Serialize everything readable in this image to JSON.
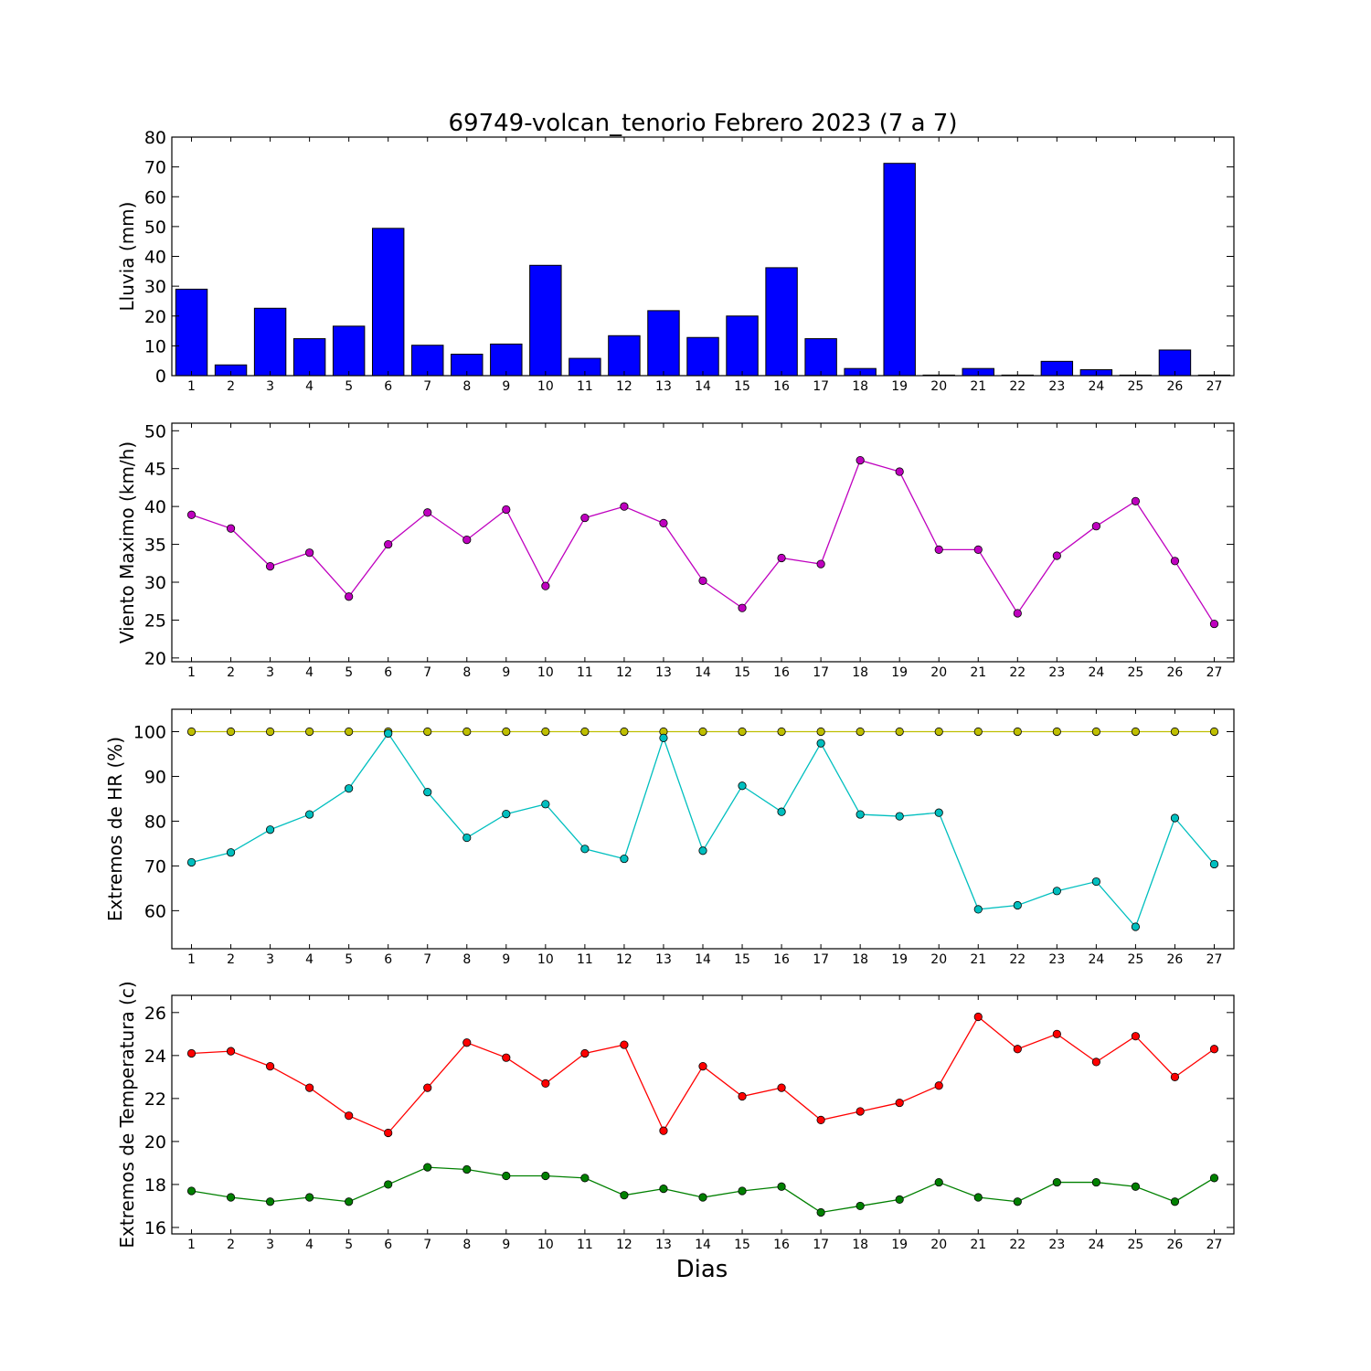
{
  "figure": {
    "title": "69749-volcan_tenorio Febrero 2023  (7 a 7)",
    "xlabel": "Dias"
  },
  "chart_data": [
    {
      "type": "bar",
      "title": "69749-volcan_tenorio Febrero 2023  (7 a 7)",
      "xlabel": "",
      "ylabel": "Lluvia (mm)",
      "categories": [
        1,
        2,
        3,
        4,
        5,
        6,
        7,
        8,
        9,
        10,
        11,
        12,
        13,
        14,
        15,
        16,
        17,
        18,
        19,
        20,
        21,
        22,
        23,
        24,
        25,
        26,
        27
      ],
      "xlim": [
        0.5,
        27.5
      ],
      "ylim": [
        0,
        80
      ],
      "yticks": [
        0,
        10,
        20,
        30,
        40,
        50,
        60,
        70,
        80
      ],
      "grid": false,
      "series": [
        {
          "color": "#0000ff",
          "values": [
            29.0,
            3.6,
            22.6,
            12.4,
            16.6,
            49.4,
            10.2,
            7.2,
            10.6,
            37.0,
            5.8,
            13.4,
            21.8,
            12.8,
            20.0,
            36.2,
            12.4,
            2.4,
            71.2,
            0.2,
            2.4,
            0.2,
            4.8,
            2.0,
            0.2,
            8.6,
            0.2
          ]
        }
      ]
    },
    {
      "type": "line",
      "xlabel": "",
      "ylabel": "Viento Maximo (km/h)",
      "x": [
        1,
        2,
        3,
        4,
        5,
        6,
        7,
        8,
        9,
        10,
        11,
        12,
        13,
        14,
        15,
        16,
        17,
        18,
        19,
        20,
        21,
        22,
        23,
        24,
        25,
        26,
        27
      ],
      "xlim": [
        0.5,
        27.5
      ],
      "ylim": [
        19.5,
        51
      ],
      "yticks": [
        20,
        25,
        30,
        35,
        40,
        45,
        50
      ],
      "grid": false,
      "series": [
        {
          "color": "#bf00bf",
          "values": [
            38.9,
            37.1,
            32.1,
            33.9,
            28.1,
            35.0,
            39.2,
            35.6,
            39.6,
            29.5,
            38.5,
            40.0,
            37.8,
            30.2,
            26.6,
            33.2,
            32.4,
            46.1,
            44.6,
            34.3,
            34.3,
            25.9,
            33.5,
            37.4,
            40.7,
            32.8,
            24.5
          ]
        }
      ]
    },
    {
      "type": "line",
      "xlabel": "",
      "ylabel": "Extremos de HR (%)",
      "x": [
        1,
        2,
        3,
        4,
        5,
        6,
        7,
        8,
        9,
        10,
        11,
        12,
        13,
        14,
        15,
        16,
        17,
        18,
        19,
        20,
        21,
        22,
        23,
        24,
        25,
        26,
        27
      ],
      "xlim": [
        0.5,
        27.5
      ],
      "ylim": [
        51.5,
        105
      ],
      "yticks": [
        60,
        70,
        80,
        90,
        100
      ],
      "grid": false,
      "series": [
        {
          "color": "#bfbf00",
          "values": [
            100,
            100,
            100,
            100,
            100,
            100,
            100,
            100,
            100,
            100,
            100,
            100,
            100,
            100,
            100,
            100,
            100,
            100,
            100,
            100,
            100,
            100,
            100,
            100,
            100,
            100,
            100
          ]
        },
        {
          "color": "#00bfbf",
          "values": [
            70.8,
            73.0,
            78.1,
            81.5,
            87.3,
            99.6,
            86.5,
            76.3,
            81.6,
            83.8,
            73.8,
            71.6,
            98.6,
            73.4,
            87.9,
            82.1,
            97.4,
            81.5,
            81.1,
            81.9,
            60.3,
            61.2,
            64.4,
            66.5,
            56.4,
            80.7,
            70.4
          ]
        }
      ]
    },
    {
      "type": "line",
      "xlabel": "Dias",
      "ylabel": "Extremos de Temperatura (c)",
      "x": [
        1,
        2,
        3,
        4,
        5,
        6,
        7,
        8,
        9,
        10,
        11,
        12,
        13,
        14,
        15,
        16,
        17,
        18,
        19,
        20,
        21,
        22,
        23,
        24,
        25,
        26,
        27
      ],
      "xlim": [
        0.5,
        27.5
      ],
      "ylim": [
        15.7,
        26.8
      ],
      "yticks": [
        16,
        18,
        20,
        22,
        24,
        26
      ],
      "grid": false,
      "series": [
        {
          "color": "#ff0000",
          "values": [
            24.1,
            24.2,
            23.5,
            22.5,
            21.2,
            20.4,
            22.5,
            24.6,
            23.9,
            22.7,
            24.1,
            24.5,
            20.5,
            23.5,
            22.1,
            22.5,
            21.0,
            21.4,
            21.8,
            22.6,
            25.8,
            24.3,
            25.0,
            23.7,
            24.9,
            23.0,
            24.3
          ]
        },
        {
          "color": "#008000",
          "values": [
            17.7,
            17.4,
            17.2,
            17.4,
            17.2,
            18.0,
            18.8,
            18.7,
            18.4,
            18.4,
            18.3,
            17.5,
            17.8,
            17.4,
            17.7,
            17.9,
            16.7,
            17.0,
            17.3,
            18.1,
            17.4,
            17.2,
            18.1,
            18.1,
            17.9,
            17.2,
            18.3
          ]
        }
      ]
    }
  ]
}
